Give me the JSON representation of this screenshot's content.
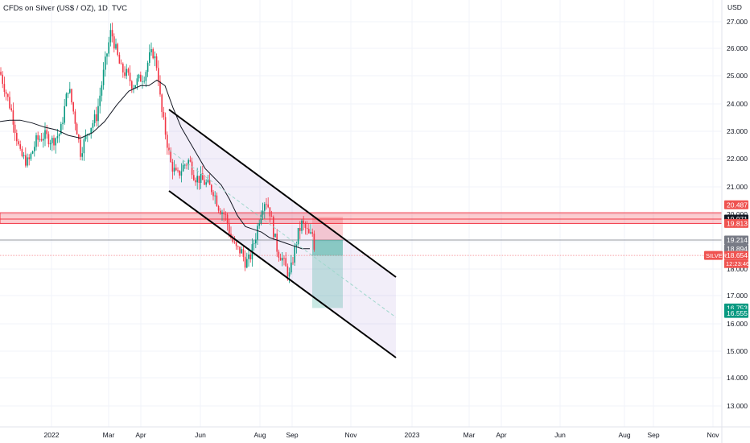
{
  "chart_data": {
    "type": "candlestick",
    "title": "CFDs on Silver (US$ / OZ), 1D, TVC",
    "currency": "USD",
    "y_ticks": [
      "13.000",
      "14.000",
      "15.000",
      "16.000",
      "17.000",
      "18.000",
      "19.000",
      "20.000",
      "21.000",
      "22.000",
      "23.000",
      "24.000",
      "25.000",
      "26.000",
      "27.000"
    ],
    "x_ticks": [
      "2022",
      "Mar",
      "Apr",
      "Jun",
      "Aug",
      "Sep",
      "Nov",
      "2023",
      "Mar",
      "Apr",
      "Jun",
      "Aug",
      "Sep",
      "Nov"
    ],
    "ylim": [
      12.45,
      27.9
    ],
    "price_tags": [
      {
        "value": 20.487,
        "label": "20.487",
        "color": "#ef5350"
      },
      {
        "value": 19.971,
        "label": "19.971",
        "color": "#131722"
      },
      {
        "value": 19.813,
        "label": "19.813",
        "color": "#ef5350"
      },
      {
        "value": 19.214,
        "label": "19.214",
        "color": "#787b86"
      },
      {
        "value": 18.894,
        "label": "18.894",
        "color": "#787b86"
      },
      {
        "value": 18.654,
        "label": "18.654",
        "color": "#ef5350"
      },
      {
        "value": 16.753,
        "label": "16.753",
        "color": "#089981"
      },
      {
        "value": 16.555,
        "label": "16.555",
        "color": "#089981"
      }
    ],
    "symbol_tag": {
      "label": "SILVER",
      "color": "#ef5350"
    },
    "countdown": "12:23:46",
    "colors": {
      "up": "#089981",
      "down": "#f23645",
      "ma": "#131722",
      "channel": "#000000"
    },
    "moving_average": {
      "x": [
        0,
        12,
        25,
        40,
        55,
        70,
        85,
        100,
        115,
        130,
        145,
        160,
        175,
        185,
        195,
        205,
        215,
        225,
        235,
        245,
        255,
        265,
        275,
        285,
        295,
        305,
        315,
        325,
        335,
        345,
        355,
        365,
        375,
        385
      ],
      "y": [
        23.5,
        23.55,
        23.55,
        23.45,
        23.3,
        23.2,
        23.0,
        22.9,
        23.1,
        23.5,
        24.1,
        24.6,
        24.8,
        24.8,
        25.0,
        24.8,
        24.0,
        23.3,
        22.8,
        22.3,
        21.8,
        21.5,
        21.2,
        20.7,
        20.1,
        19.7,
        19.6,
        19.5,
        19.3,
        19.2,
        19.1,
        19.0,
        18.9,
        18.9
      ]
    },
    "anchors": {
      "x": [
        0,
        15,
        25,
        35,
        45,
        55,
        65,
        75,
        85,
        95,
        100,
        110,
        120,
        130,
        138,
        143,
        150,
        158,
        165,
        172,
        180,
        185,
        190,
        196,
        200,
        205,
        212,
        220,
        228,
        235,
        242,
        250,
        258,
        265,
        272,
        280,
        287,
        293,
        300,
        305,
        310,
        318,
        325,
        330,
        335,
        340,
        345,
        350,
        355,
        360,
        365,
        370,
        375,
        380,
        385,
        388,
        392
      ],
      "y": [
        25.3,
        23.8,
        22.3,
        22.0,
        22.8,
        23.0,
        22.8,
        23.1,
        24.8,
        23.3,
        22.4,
        23.2,
        23.7,
        25.5,
        26.8,
        26.2,
        25.4,
        25.2,
        24.8,
        25.0,
        25.2,
        25.8,
        26.0,
        25.4,
        24.0,
        23.2,
        22.0,
        21.5,
        21.9,
        22.1,
        21.5,
        21.4,
        21.2,
        21.0,
        20.4,
        20.1,
        19.3,
        18.9,
        18.8,
        18.4,
        18.5,
        19.4,
        20.4,
        20.7,
        20.3,
        19.5,
        18.8,
        18.6,
        18.2,
        17.9,
        18.7,
        19.4,
        19.8,
        19.6,
        19.3,
        19.5,
        18.7
      ]
    }
  }
}
